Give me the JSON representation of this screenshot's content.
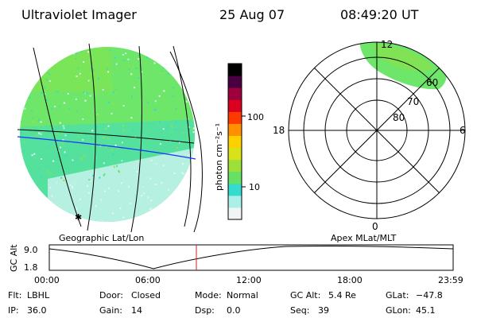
{
  "header": {
    "instrument": "Ultraviolet Imager",
    "date": "25 Aug 07",
    "time": "08:49:20 UT"
  },
  "left_panel": {
    "caption": "Geographic Lat/Lon"
  },
  "right_panel": {
    "caption": "Apex MLat/MLT",
    "mlt_labels": {
      "top": "12",
      "left": "18",
      "right": "6",
      "bottom": "0"
    },
    "lat_labels": [
      "80",
      "70",
      "60"
    ]
  },
  "colorbar": {
    "unit_label": "photon cm⁻²s⁻¹",
    "tick_labels": [
      "100",
      "10"
    ],
    "colors": [
      "#f0f4f4",
      "#a8f0e8",
      "#33dccc",
      "#66e065",
      "#9de03a",
      "#d8e218",
      "#ffd000",
      "#ff9000",
      "#ff3a00",
      "#d90020",
      "#9d003a",
      "#4a0040",
      "#000000"
    ]
  },
  "altitude_plot": {
    "ylabel": "GC Alt",
    "yticks": [
      "9.0",
      "1.8"
    ],
    "xticks": [
      "00:00",
      "06:00",
      "12:00",
      "18:00",
      "23:59"
    ]
  },
  "status": {
    "filter_label": "Flt:",
    "filter_value": "LBHL",
    "door_label": "Door:",
    "door_value": "Closed",
    "mode_label": "Mode:",
    "mode_value": "Normal",
    "gcalt_label": "GC Alt:",
    "gcalt_value": "5.4 Re",
    "glat_label": "GLat:",
    "glat_value": "−47.8",
    "ip_label": "IP:",
    "ip_value": "36.0",
    "gain_label": "Gain:",
    "gain_value": "14",
    "dsp_label": "Dsp:",
    "dsp_value": "0.0",
    "seq_label": "Seq:",
    "seq_value": "39",
    "glon_label": "GLon:",
    "glon_value": "45.1"
  }
}
